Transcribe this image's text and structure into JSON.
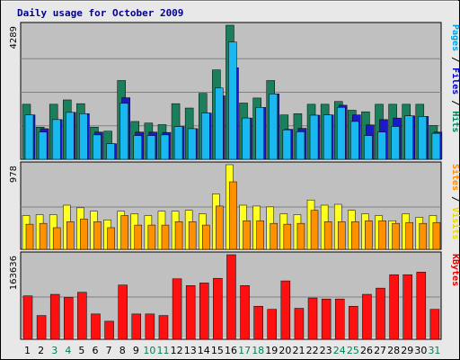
{
  "chart_data": [
    {
      "type": "bar",
      "title": "Daily usage for October 2009",
      "categories": [
        "1",
        "2",
        "3",
        "4",
        "5",
        "6",
        "7",
        "8",
        "9",
        "10",
        "11",
        "12",
        "13",
        "14",
        "15",
        "16",
        "17",
        "18",
        "19",
        "20",
        "21",
        "22",
        "23",
        "24",
        "25",
        "26",
        "27",
        "28",
        "29",
        "30",
        "31"
      ],
      "weekend_days": [
        "3",
        "4",
        "10",
        "11",
        "17",
        "18",
        "24",
        "25",
        "31"
      ],
      "ymax_label": "4289",
      "ymax": 4289,
      "side_labels": [
        {
          "text": "Pages",
          "color": "#00a0e0"
        },
        {
          "text": " / ",
          "color": "#000000"
        },
        {
          "text": "Files",
          "color": "#0000c0"
        },
        {
          "text": " / ",
          "color": "#000000"
        },
        {
          "text": "Hits",
          "color": "#008060"
        }
      ],
      "series": [
        {
          "name": "Hits",
          "color": "#1a7f5a",
          "values": [
            1760,
            1030,
            1760,
            1900,
            1780,
            1030,
            900,
            2520,
            1210,
            1160,
            1110,
            1780,
            1640,
            2110,
            2860,
            4289,
            1800,
            1960,
            2520,
            1420,
            1460,
            1760,
            1760,
            1850,
            1570,
            1520,
            1760,
            1760,
            1760,
            1760,
            1080
          ]
        },
        {
          "name": "Files",
          "color": "#1a1acc",
          "values": [
            1420,
            980,
            1270,
            1500,
            1460,
            870,
            500,
            1970,
            870,
            870,
            860,
            1050,
            980,
            1480,
            2030,
            2930,
            1320,
            1660,
            2090,
            960,
            990,
            1410,
            1420,
            1730,
            1420,
            1100,
            1270,
            1320,
            1390,
            1370,
            870
          ]
        },
        {
          "name": "Pages",
          "color": "#1ab8f0",
          "values": [
            1420,
            870,
            1270,
            1500,
            1460,
            780,
            500,
            1790,
            760,
            760,
            780,
            1050,
            980,
            1480,
            2280,
            3750,
            1320,
            1660,
            2090,
            940,
            880,
            1410,
            1420,
            1660,
            1210,
            760,
            870,
            1050,
            1390,
            1370,
            830
          ]
        }
      ]
    },
    {
      "type": "bar",
      "categories": [
        "1",
        "2",
        "3",
        "4",
        "5",
        "6",
        "7",
        "8",
        "9",
        "10",
        "11",
        "12",
        "13",
        "14",
        "15",
        "16",
        "17",
        "18",
        "19",
        "20",
        "21",
        "22",
        "23",
        "24",
        "25",
        "26",
        "27",
        "28",
        "29",
        "30",
        "31"
      ],
      "ymax_label": "978",
      "ymax": 978,
      "side_labels": [
        {
          "text": "Sites",
          "color": "#ff8c00"
        },
        {
          "text": " / ",
          "color": "#000000"
        },
        {
          "text": "Visits",
          "color": "#e8d800"
        }
      ],
      "series": [
        {
          "name": "Visits",
          "color": "#ffff20",
          "values": [
            390,
            400,
            400,
            510,
            480,
            440,
            340,
            440,
            410,
            390,
            440,
            440,
            450,
            410,
            640,
            978,
            510,
            500,
            490,
            410,
            400,
            570,
            510,
            520,
            450,
            410,
            390,
            330,
            410,
            370,
            390
          ]
        },
        {
          "name": "Sites",
          "color": "#ff9000",
          "values": [
            290,
            300,
            250,
            320,
            350,
            320,
            250,
            390,
            280,
            280,
            280,
            320,
            320,
            280,
            500,
            780,
            330,
            330,
            300,
            290,
            300,
            450,
            320,
            320,
            320,
            330,
            330,
            300,
            310,
            300,
            310
          ]
        }
      ]
    },
    {
      "type": "bar",
      "categories": [
        "1",
        "2",
        "3",
        "4",
        "5",
        "6",
        "7",
        "8",
        "9",
        "10",
        "11",
        "12",
        "13",
        "14",
        "15",
        "16",
        "17",
        "18",
        "19",
        "20",
        "21",
        "22",
        "23",
        "24",
        "25",
        "26",
        "27",
        "28",
        "29",
        "30",
        "31"
      ],
      "ymax_label": "163636",
      "ymax": 163636,
      "side_labels": [
        {
          "text": "KBytes",
          "color": "#e00000"
        }
      ],
      "series": [
        {
          "name": "KBytes",
          "color": "#ff1010",
          "values": [
            84000,
            46000,
            87000,
            81000,
            91000,
            49000,
            35000,
            105000,
            49000,
            49000,
            46000,
            117000,
            104000,
            109000,
            118000,
            163636,
            104000,
            64000,
            58000,
            113000,
            60000,
            80000,
            78000,
            78000,
            64000,
            87000,
            99000,
            125000,
            125000,
            130000,
            58000
          ]
        }
      ]
    }
  ]
}
